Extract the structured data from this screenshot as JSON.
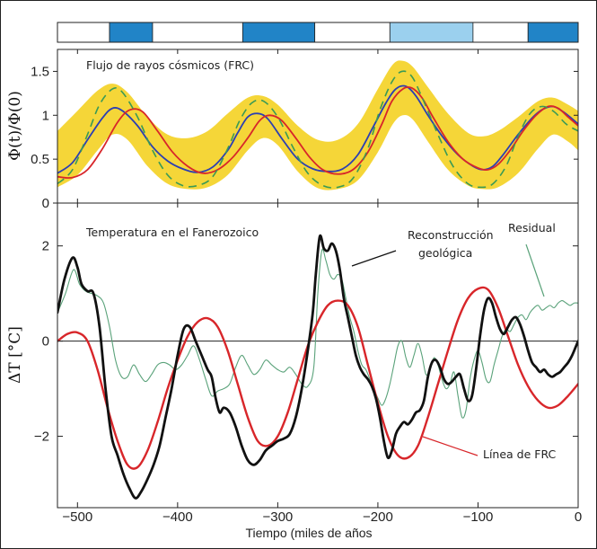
{
  "chart_data": [
    {
      "type": "line",
      "title": "Flujo de rayos cósmicos (FRC)",
      "xlabel": "",
      "ylabel": "Φ(t)/Φ(0)",
      "xlim": [
        -520,
        0
      ],
      "ylim": [
        0,
        1.75
      ],
      "yticks": [
        0,
        0.5,
        1,
        1.5
      ],
      "ytick_labels": [
        "0",
        "0.5",
        "1",
        "1.5"
      ],
      "band": {
        "name": "Rango de incertidumbre",
        "color": "#f5d638",
        "x": [
          -520,
          -500,
          -480,
          -465,
          -450,
          -430,
          -410,
          -390,
          -370,
          -350,
          -330,
          -315,
          -300,
          -280,
          -260,
          -240,
          -220,
          -200,
          -185,
          -175,
          -165,
          -150,
          -130,
          -110,
          -95,
          -80,
          -60,
          -40,
          -25,
          -10,
          0
        ],
        "upper": [
          0.82,
          1.05,
          1.28,
          1.36,
          1.26,
          0.98,
          0.78,
          0.74,
          0.82,
          1.02,
          1.2,
          1.22,
          1.12,
          0.88,
          0.72,
          0.72,
          0.9,
          1.3,
          1.58,
          1.62,
          1.55,
          1.32,
          1.02,
          0.8,
          0.76,
          0.82,
          0.98,
          1.16,
          1.2,
          1.12,
          1.05
        ],
        "lower": [
          0.18,
          0.32,
          0.6,
          0.78,
          0.72,
          0.42,
          0.22,
          0.16,
          0.18,
          0.32,
          0.6,
          0.74,
          0.66,
          0.36,
          0.17,
          0.16,
          0.26,
          0.58,
          0.9,
          1.0,
          0.95,
          0.7,
          0.38,
          0.2,
          0.16,
          0.18,
          0.34,
          0.62,
          0.78,
          0.7,
          0.6
        ]
      },
      "series": [
        {
          "name": "FRC (azul)",
          "color": "#2b3fb3",
          "x": [
            -520,
            -505,
            -490,
            -475,
            -465,
            -455,
            -440,
            -425,
            -410,
            -395,
            -380,
            -365,
            -350,
            -340,
            -330,
            -320,
            -310,
            -295,
            -280,
            -265,
            -250,
            -235,
            -220,
            -205,
            -192,
            -182,
            -172,
            -162,
            -150,
            -135,
            -120,
            -105,
            -95,
            -85,
            -75,
            -60,
            -45,
            -35,
            -25,
            -15,
            -5,
            0
          ],
          "y": [
            0.34,
            0.46,
            0.72,
            0.97,
            1.08,
            1.05,
            0.88,
            0.64,
            0.48,
            0.39,
            0.35,
            0.41,
            0.6,
            0.8,
            0.98,
            1.02,
            0.96,
            0.72,
            0.5,
            0.39,
            0.36,
            0.39,
            0.55,
            0.86,
            1.14,
            1.3,
            1.33,
            1.22,
            1.0,
            0.75,
            0.55,
            0.42,
            0.38,
            0.42,
            0.55,
            0.78,
            0.98,
            1.07,
            1.1,
            1.04,
            0.95,
            0.9
          ]
        },
        {
          "name": "FRC (roja)",
          "color": "#d8262a",
          "x": [
            -520,
            -505,
            -490,
            -475,
            -460,
            -448,
            -435,
            -420,
            -405,
            -390,
            -375,
            -360,
            -345,
            -330,
            -318,
            -308,
            -296,
            -282,
            -268,
            -255,
            -240,
            -225,
            -210,
            -196,
            -186,
            -175,
            -166,
            -156,
            -145,
            -130,
            -115,
            -100,
            -90,
            -80,
            -68,
            -55,
            -42,
            -30,
            -20,
            -10,
            0
          ],
          "y": [
            0.3,
            0.29,
            0.38,
            0.62,
            0.92,
            1.06,
            1.04,
            0.82,
            0.58,
            0.42,
            0.34,
            0.38,
            0.52,
            0.74,
            0.94,
            1.0,
            0.94,
            0.74,
            0.52,
            0.38,
            0.33,
            0.38,
            0.58,
            0.9,
            1.16,
            1.3,
            1.31,
            1.2,
            0.98,
            0.7,
            0.5,
            0.4,
            0.38,
            0.44,
            0.6,
            0.82,
            1.0,
            1.1,
            1.08,
            0.98,
            0.88
          ]
        },
        {
          "name": "FRC (verde discontinua)",
          "color": "#3a9a55",
          "dashed": true,
          "x": [
            -520,
            -505,
            -490,
            -478,
            -465,
            -455,
            -440,
            -425,
            -410,
            -395,
            -380,
            -365,
            -350,
            -338,
            -326,
            -314,
            -300,
            -285,
            -270,
            -255,
            -240,
            -225,
            -210,
            -198,
            -186,
            -176,
            -166,
            -155,
            -140,
            -125,
            -110,
            -97,
            -85,
            -72,
            -60,
            -48,
            -36,
            -24,
            -12,
            0
          ],
          "y": [
            0.22,
            0.38,
            0.78,
            1.12,
            1.3,
            1.26,
            0.98,
            0.6,
            0.32,
            0.2,
            0.2,
            0.3,
            0.62,
            0.94,
            1.14,
            1.16,
            0.98,
            0.64,
            0.34,
            0.2,
            0.18,
            0.28,
            0.62,
            1.06,
            1.38,
            1.5,
            1.44,
            1.18,
            0.78,
            0.42,
            0.22,
            0.18,
            0.22,
            0.42,
            0.76,
            1.02,
            1.1,
            1.04,
            0.9,
            0.82
          ]
        }
      ],
      "top_bar": {
        "segments": [
          {
            "start": -520,
            "end": -468,
            "color": "#ffffff"
          },
          {
            "start": -468,
            "end": -425,
            "color": "#2184c7"
          },
          {
            "start": -425,
            "end": -335,
            "color": "#ffffff"
          },
          {
            "start": -335,
            "end": -263,
            "color": "#2184c7"
          },
          {
            "start": -263,
            "end": -188,
            "color": "#ffffff"
          },
          {
            "start": -188,
            "end": -105,
            "color": "#9bd0ee"
          },
          {
            "start": -105,
            "end": -50,
            "color": "#ffffff"
          },
          {
            "start": -50,
            "end": 0,
            "color": "#2184c7"
          }
        ]
      }
    },
    {
      "type": "line",
      "title": "Temperatura en el Fanerozoico",
      "xlabel": "Tiempo (miles de años",
      "ylabel": "ΔT [°C]",
      "xlim": [
        -520,
        0
      ],
      "ylim": [
        -3.5,
        2.9
      ],
      "xticks": [
        -500,
        -400,
        -300,
        -200,
        -100,
        0
      ],
      "xtick_labels": [
        "−500",
        "−400",
        "−300",
        "−200",
        "−100",
        "0"
      ],
      "yticks": [
        -2,
        0,
        2
      ],
      "ytick_labels": [
        "−2",
        "0",
        "2"
      ],
      "zero_line": true,
      "annotations": [
        {
          "lines": [
            "Reconstrucción",
            "geológica"
          ],
          "target_series": "Reconstrucción geológica"
        },
        {
          "lines": [
            "Residual"
          ],
          "target_series": "Residual"
        },
        {
          "lines": [
            "Línea de FRC"
          ],
          "target_series": "Línea de FRC"
        }
      ],
      "series": [
        {
          "name": "Reconstrucción geológica",
          "color": "#111111",
          "x": [
            -520,
            -513,
            -505,
            -500,
            -496,
            -490,
            -484,
            -478,
            -472,
            -466,
            -460,
            -454,
            -448,
            -442,
            -436,
            -430,
            -424,
            -418,
            -412,
            -406,
            -400,
            -394,
            -388,
            -382,
            -376,
            -370,
            -366,
            -362,
            -358,
            -354,
            -348,
            -342,
            -336,
            -330,
            -324,
            -318,
            -312,
            -306,
            -300,
            -294,
            -288,
            -282,
            -276,
            -270,
            -265,
            -262,
            -258,
            -254,
            -250,
            -246,
            -242,
            -238,
            -234,
            -230,
            -226,
            -222,
            -218,
            -214,
            -210,
            -206,
            -202,
            -198,
            -194,
            -190,
            -186,
            -182,
            -178,
            -174,
            -170,
            -166,
            -162,
            -158,
            -154,
            -150,
            -146,
            -142,
            -138,
            -134,
            -130,
            -126,
            -122,
            -118,
            -114,
            -110,
            -106,
            -102,
            -98,
            -94,
            -90,
            -86,
            -82,
            -78,
            -74,
            -70,
            -66,
            -62,
            -58,
            -54,
            -50,
            -46,
            -42,
            -38,
            -34,
            -30,
            -26,
            -22,
            -18,
            -14,
            -10,
            -6,
            -2,
            0
          ],
          "y": [
            0.6,
            1.3,
            1.75,
            1.55,
            1.2,
            1.05,
            1.0,
            0.3,
            -1.0,
            -2.0,
            -2.4,
            -2.8,
            -3.1,
            -3.3,
            -3.15,
            -2.9,
            -2.6,
            -2.2,
            -1.6,
            -1.0,
            -0.3,
            0.25,
            0.3,
            0.0,
            -0.3,
            -0.6,
            -0.75,
            -1.2,
            -1.5,
            -1.4,
            -1.5,
            -1.8,
            -2.2,
            -2.5,
            -2.6,
            -2.5,
            -2.3,
            -2.2,
            -2.1,
            -2.05,
            -1.95,
            -1.6,
            -1.0,
            -0.2,
            0.6,
            1.4,
            2.2,
            1.95,
            1.9,
            2.05,
            1.9,
            1.5,
            0.9,
            0.5,
            0.1,
            -0.3,
            -0.55,
            -0.7,
            -0.8,
            -0.95,
            -1.2,
            -1.6,
            -2.1,
            -2.45,
            -2.3,
            -1.95,
            -1.8,
            -1.7,
            -1.75,
            -1.65,
            -1.5,
            -1.45,
            -1.25,
            -0.75,
            -0.45,
            -0.4,
            -0.55,
            -0.8,
            -0.9,
            -0.85,
            -0.75,
            -0.7,
            -1.0,
            -1.25,
            -1.15,
            -0.6,
            0.1,
            0.65,
            0.9,
            0.8,
            0.5,
            0.25,
            0.15,
            0.3,
            0.45,
            0.5,
            0.35,
            0.1,
            -0.2,
            -0.45,
            -0.55,
            -0.65,
            -0.6,
            -0.7,
            -0.75,
            -0.7,
            -0.65,
            -0.55,
            -0.45,
            -0.3,
            -0.1,
            0.0
          ]
        },
        {
          "name": "Línea de FRC",
          "color": "#d8262a",
          "x": [
            -520,
            -510,
            -500,
            -490,
            -480,
            -470,
            -460,
            -450,
            -440,
            -430,
            -420,
            -410,
            -400,
            -390,
            -380,
            -370,
            -360,
            -350,
            -340,
            -330,
            -320,
            -310,
            -300,
            -290,
            -280,
            -270,
            -260,
            -250,
            -240,
            -230,
            -220,
            -210,
            -200,
            -190,
            -180,
            -170,
            -160,
            -150,
            -140,
            -130,
            -120,
            -110,
            -100,
            -90,
            -80,
            -70,
            -60,
            -50,
            -40,
            -30,
            -20,
            -10,
            0
          ],
          "y": [
            0.0,
            0.15,
            0.18,
            0.0,
            -0.6,
            -1.4,
            -2.1,
            -2.6,
            -2.65,
            -2.3,
            -1.7,
            -1.0,
            -0.4,
            0.1,
            0.4,
            0.48,
            0.3,
            -0.2,
            -0.9,
            -1.6,
            -2.1,
            -2.2,
            -2.0,
            -1.5,
            -0.8,
            -0.1,
            0.4,
            0.75,
            0.85,
            0.75,
            0.3,
            -0.5,
            -1.3,
            -2.0,
            -2.4,
            -2.45,
            -2.2,
            -1.6,
            -0.9,
            -0.2,
            0.45,
            0.9,
            1.1,
            1.08,
            0.7,
            0.1,
            -0.5,
            -0.95,
            -1.25,
            -1.4,
            -1.35,
            -1.15,
            -0.9
          ]
        },
        {
          "name": "Residual",
          "color": "#5aa27a",
          "x": [
            -520,
            -512,
            -504,
            -498,
            -492,
            -486,
            -480,
            -474,
            -468,
            -462,
            -456,
            -450,
            -444,
            -438,
            -432,
            -426,
            -420,
            -414,
            -408,
            -402,
            -396,
            -390,
            -384,
            -378,
            -372,
            -366,
            -360,
            -354,
            -348,
            -342,
            -336,
            -330,
            -324,
            -318,
            -312,
            -306,
            -300,
            -294,
            -288,
            -282,
            -276,
            -270,
            -264,
            -260,
            -256,
            -252,
            -248,
            -244,
            -240,
            -236,
            -232,
            -228,
            -224,
            -220,
            -216,
            -212,
            -208,
            -204,
            -200,
            -196,
            -192,
            -188,
            -184,
            -180,
            -176,
            -172,
            -168,
            -164,
            -160,
            -156,
            -152,
            -148,
            -144,
            -140,
            -136,
            -132,
            -128,
            -124,
            -120,
            -116,
            -112,
            -108,
            -104,
            -100,
            -96,
            -92,
            -88,
            -84,
            -80,
            -76,
            -72,
            -68,
            -64,
            -60,
            -56,
            -52,
            -48,
            -44,
            -40,
            -36,
            -32,
            -28,
            -24,
            -20,
            -16,
            -12,
            -8,
            -4,
            0
          ],
          "y": [
            0.6,
            1.0,
            1.5,
            1.2,
            1.05,
            1.0,
            0.95,
            0.8,
            0.3,
            -0.4,
            -0.75,
            -0.75,
            -0.5,
            -0.7,
            -0.85,
            -0.7,
            -0.5,
            -0.45,
            -0.5,
            -0.6,
            -0.5,
            -0.3,
            -0.1,
            -0.4,
            -0.8,
            -1.15,
            -1.05,
            -1.0,
            -0.9,
            -0.55,
            -0.3,
            -0.5,
            -0.7,
            -0.6,
            -0.4,
            -0.5,
            -0.6,
            -0.65,
            -0.55,
            -0.7,
            -0.9,
            -0.95,
            -0.55,
            1.0,
            1.9,
            1.7,
            1.4,
            1.3,
            1.4,
            1.3,
            0.9,
            0.5,
            0.2,
            -0.2,
            -0.5,
            -0.6,
            -0.8,
            -1.0,
            -1.2,
            -1.35,
            -1.2,
            -0.9,
            -0.5,
            -0.1,
            0.0,
            -0.35,
            -0.55,
            -0.3,
            -0.05,
            -0.3,
            -0.7,
            -0.6,
            -0.35,
            -0.5,
            -0.8,
            -1.0,
            -0.9,
            -0.65,
            -1.15,
            -1.6,
            -1.45,
            -0.8,
            -0.4,
            -0.2,
            -0.45,
            -0.8,
            -0.85,
            -0.5,
            -0.2,
            0.1,
            0.25,
            0.2,
            0.35,
            0.5,
            0.55,
            0.45,
            0.6,
            0.7,
            0.75,
            0.65,
            0.7,
            0.75,
            0.7,
            0.8,
            0.85,
            0.8,
            0.75,
            0.8,
            0.8
          ]
        }
      ]
    }
  ]
}
